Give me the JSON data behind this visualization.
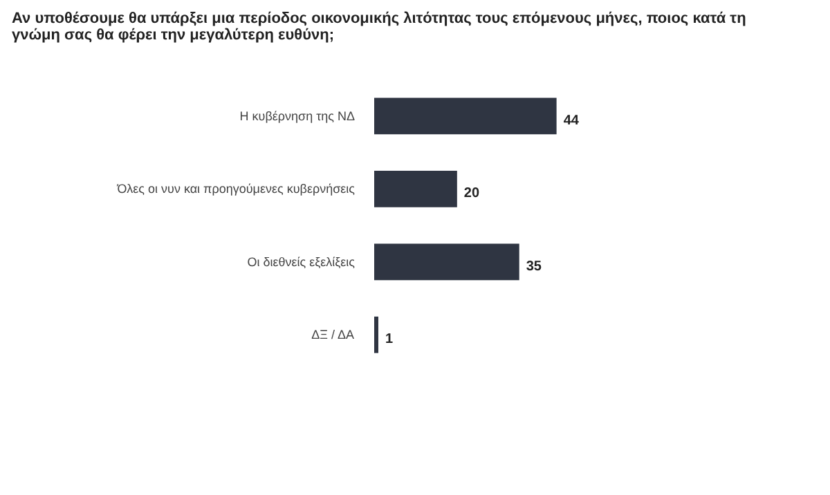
{
  "chart_data": {
    "type": "bar",
    "orientation": "horizontal",
    "title": "Αν υποθέσουμε θα υπάρξει μια περίοδος οικονομικής λιτότητας τους επόμενους μήνες, ποιος κατά τη γνώμη σας θα φέρει την μεγαλύτερη ευθύνη;",
    "categories": [
      "Η κυβέρνηση της ΝΔ",
      "Όλες οι νυν και προηγούμενες κυβερνήσεις",
      "Οι διεθνείς εξελίξεις",
      "ΔΞ / ΔΑ"
    ],
    "values": [
      44,
      20,
      35,
      1
    ],
    "color": "#2f3542",
    "data_labels": true,
    "grid": false
  }
}
